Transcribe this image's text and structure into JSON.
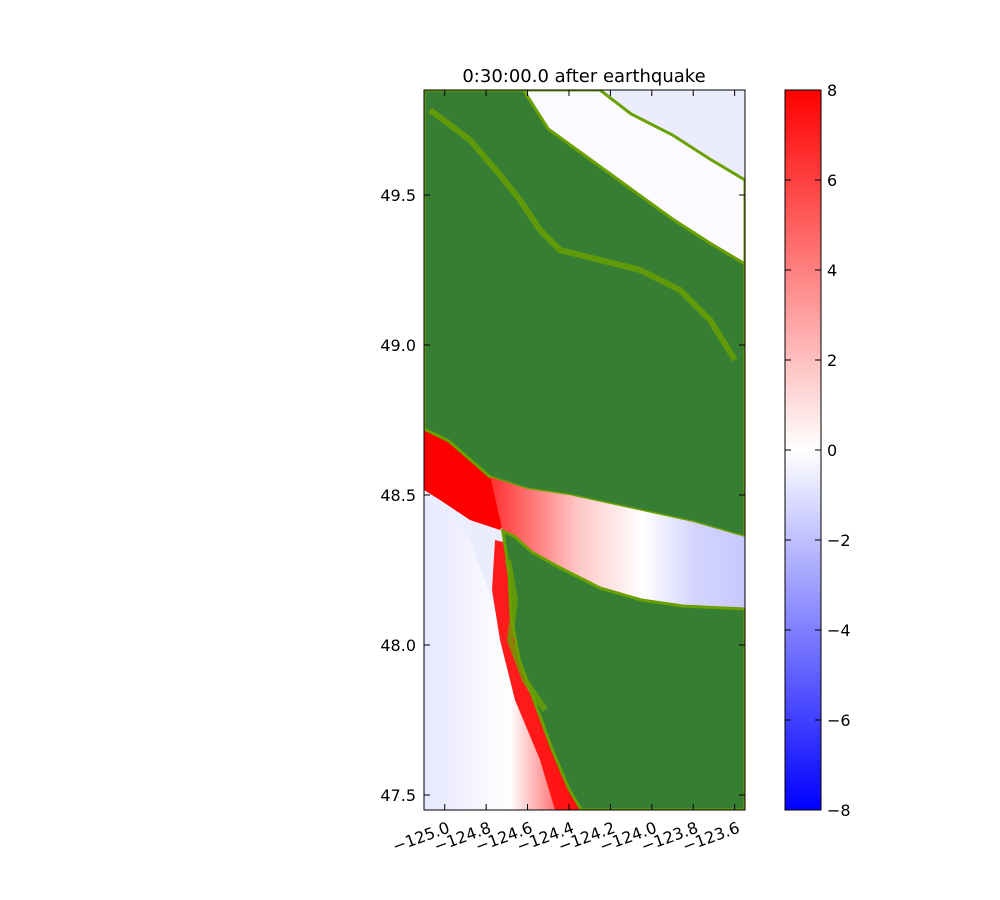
{
  "chart_data": {
    "type": "heatmap",
    "title": "0:30:00.0 after earthquake",
    "xlabel": "",
    "ylabel": "",
    "xlim": [
      -125.1,
      -123.55
    ],
    "ylim": [
      47.45,
      49.85
    ],
    "x_ticks": [
      -125.0,
      -124.8,
      -124.6,
      -124.4,
      -124.2,
      -124.0,
      -123.8,
      -123.6
    ],
    "x_tick_labels": [
      "−125.0",
      "−124.8",
      "−124.6",
      "−124.4",
      "−124.2",
      "−124.0",
      "−123.8",
      "−123.6"
    ],
    "y_ticks": [
      47.5,
      48.0,
      48.5,
      49.0,
      49.5
    ],
    "y_tick_labels": [
      "47.5",
      "48.0",
      "48.5",
      "49.0",
      "49.5"
    ],
    "colorbar": {
      "range": [
        -8,
        8
      ],
      "colors": [
        "#0000ff",
        "#ffffff",
        "#ff0000"
      ],
      "ticks": [
        -8,
        -6,
        -4,
        -2,
        0,
        2,
        4,
        6,
        8
      ],
      "tick_labels": [
        "−8",
        "−6",
        "−4",
        "−2",
        "0",
        "2",
        "4",
        "6",
        "8"
      ]
    },
    "land_color": "#377e35",
    "shore_color": "#6aa000",
    "grid": false,
    "regions": {
      "land_main": [
        [
          -125.1,
          48.72
        ],
        [
          -124.98,
          48.68
        ],
        [
          -124.88,
          48.62
        ],
        [
          -124.78,
          48.56
        ],
        [
          -124.6,
          48.52
        ],
        [
          -124.4,
          48.5
        ],
        [
          -124.2,
          48.47
        ],
        [
          -124.0,
          48.44
        ],
        [
          -123.8,
          48.41
        ],
        [
          -123.55,
          48.36
        ],
        [
          -123.55,
          49.27
        ],
        [
          -123.72,
          49.34
        ],
        [
          -123.9,
          49.42
        ],
        [
          -124.1,
          49.52
        ],
        [
          -124.3,
          49.62
        ],
        [
          -124.5,
          49.72
        ],
        [
          -124.62,
          49.85
        ],
        [
          -125.1,
          49.85
        ]
      ],
      "land_peninsula": [
        [
          -124.72,
          48.38
        ],
        [
          -124.66,
          48.36
        ],
        [
          -124.58,
          48.31
        ],
        [
          -124.45,
          48.26
        ],
        [
          -124.25,
          48.19
        ],
        [
          -124.05,
          48.15
        ],
        [
          -123.85,
          48.13
        ],
        [
          -123.55,
          48.12
        ],
        [
          -123.55,
          47.45
        ],
        [
          -124.34,
          47.45
        ],
        [
          -124.4,
          47.52
        ],
        [
          -124.48,
          47.65
        ],
        [
          -124.56,
          47.8
        ],
        [
          -124.64,
          47.95
        ],
        [
          -124.68,
          48.1
        ],
        [
          -124.69,
          48.25
        ]
      ],
      "strait_water": [
        [
          -123.55,
          48.36
        ],
        [
          -123.8,
          48.41
        ],
        [
          -124.0,
          48.44
        ],
        [
          -124.2,
          48.47
        ],
        [
          -124.4,
          48.5
        ],
        [
          -124.6,
          48.52
        ],
        [
          -124.78,
          48.56
        ],
        [
          -124.72,
          48.38
        ],
        [
          -124.66,
          48.36
        ],
        [
          -124.58,
          48.31
        ],
        [
          -124.45,
          48.26
        ],
        [
          -124.25,
          48.19
        ],
        [
          -124.05,
          48.15
        ],
        [
          -123.85,
          48.13
        ],
        [
          -123.55,
          48.12
        ]
      ],
      "northern_water": [
        [
          -125.0,
          49.85
        ],
        [
          -124.62,
          49.85
        ],
        [
          -124.5,
          49.72
        ],
        [
          -124.3,
          49.62
        ],
        [
          -124.1,
          49.52
        ],
        [
          -123.9,
          49.42
        ],
        [
          -123.72,
          49.34
        ],
        [
          -123.55,
          49.27
        ],
        [
          -123.55,
          49.55
        ],
        [
          -123.72,
          49.62
        ],
        [
          -123.9,
          49.7
        ],
        [
          -124.1,
          49.77
        ],
        [
          -124.25,
          49.85
        ]
      ]
    }
  }
}
